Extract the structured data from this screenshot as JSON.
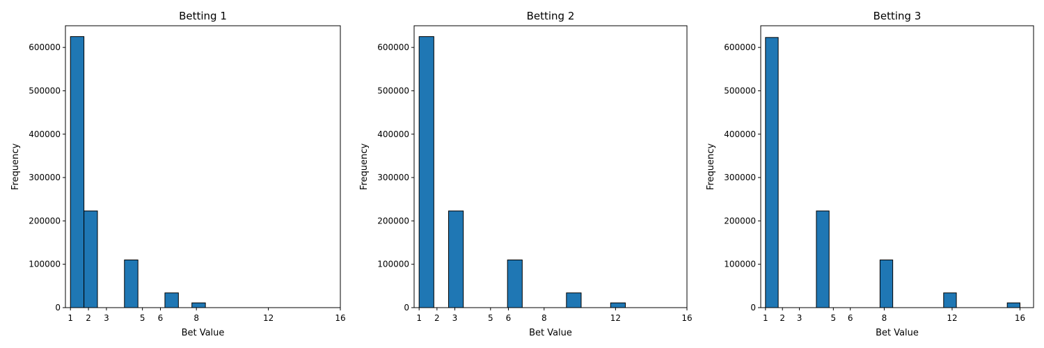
{
  "chart_data": [
    {
      "type": "bar",
      "title": "Betting 1",
      "xlabel": "Bet Value",
      "ylabel": "Frequency",
      "xlim": [
        0.72,
        16
      ],
      "ylim": [
        0,
        650000
      ],
      "xticks": [
        1,
        2,
        3,
        5,
        6,
        8,
        12,
        16
      ],
      "yticks": [
        0,
        100000,
        200000,
        300000,
        400000,
        500000,
        600000
      ],
      "bin_width": 0.75,
      "bars": [
        {
          "x0": 1.0,
          "value": 625000
        },
        {
          "x0": 1.75,
          "value": 223000
        },
        {
          "x0": 2.5,
          "value": 0
        },
        {
          "x0": 3.25,
          "value": 0
        },
        {
          "x0": 4.0,
          "value": 110000
        },
        {
          "x0": 4.75,
          "value": 0
        },
        {
          "x0": 5.5,
          "value": 0
        },
        {
          "x0": 6.25,
          "value": 34000
        },
        {
          "x0": 7.0,
          "value": 0
        },
        {
          "x0": 7.75,
          "value": 11000
        }
      ],
      "color": "#1f77b4",
      "edgecolor": "#000000",
      "grid": false
    },
    {
      "type": "bar",
      "title": "Betting 2",
      "xlabel": "Bet Value",
      "ylabel": "Frequency",
      "xlim": [
        0.72,
        16
      ],
      "ylim": [
        0,
        650000
      ],
      "xticks": [
        1,
        2,
        3,
        5,
        6,
        8,
        12,
        16
      ],
      "yticks": [
        0,
        100000,
        200000,
        300000,
        400000,
        500000,
        600000
      ],
      "bin_width": 0.825,
      "bars": [
        {
          "x0": 1.0,
          "value": 625000
        },
        {
          "x0": 1.825,
          "value": 0
        },
        {
          "x0": 2.65,
          "value": 223000
        },
        {
          "x0": 3.475,
          "value": 0
        },
        {
          "x0": 4.3,
          "value": 0
        },
        {
          "x0": 5.125,
          "value": 0
        },
        {
          "x0": 5.95,
          "value": 110000
        },
        {
          "x0": 6.775,
          "value": 0
        },
        {
          "x0": 7.6,
          "value": 0
        },
        {
          "x0": 8.425,
          "value": 0
        },
        {
          "x0": 9.25,
          "value": 34000
        },
        {
          "x0": 10.075,
          "value": 0
        },
        {
          "x0": 10.9,
          "value": 0
        },
        {
          "x0": 11.725,
          "value": 11000
        }
      ],
      "color": "#1f77b4",
      "edgecolor": "#000000",
      "grid": false
    },
    {
      "type": "bar",
      "title": "Betting 3",
      "xlabel": "Bet Value",
      "ylabel": "Frequency",
      "xlim": [
        0.72,
        16.8
      ],
      "ylim": [
        0,
        650000
      ],
      "xticks": [
        1,
        2,
        3,
        5,
        6,
        8,
        12,
        16
      ],
      "yticks": [
        0,
        100000,
        200000,
        300000,
        400000,
        500000,
        600000
      ],
      "bin_width": 0.75,
      "bars": [
        {
          "x0": 1.0,
          "value": 623000
        },
        {
          "x0": 1.75,
          "value": 0
        },
        {
          "x0": 2.5,
          "value": 0
        },
        {
          "x0": 3.25,
          "value": 0
        },
        {
          "x0": 4.0,
          "value": 223000
        },
        {
          "x0": 4.75,
          "value": 0
        },
        {
          "x0": 5.5,
          "value": 0
        },
        {
          "x0": 6.25,
          "value": 0
        },
        {
          "x0": 7.0,
          "value": 0
        },
        {
          "x0": 7.75,
          "value": 110000
        },
        {
          "x0": 8.5,
          "value": 0
        },
        {
          "x0": 9.25,
          "value": 0
        },
        {
          "x0": 10.0,
          "value": 0
        },
        {
          "x0": 10.75,
          "value": 0
        },
        {
          "x0": 11.5,
          "value": 34000
        },
        {
          "x0": 12.25,
          "value": 0
        },
        {
          "x0": 13.0,
          "value": 0
        },
        {
          "x0": 13.75,
          "value": 0
        },
        {
          "x0": 14.5,
          "value": 0
        },
        {
          "x0": 15.25,
          "value": 11000
        }
      ],
      "color": "#1f77b4",
      "edgecolor": "#000000",
      "grid": false
    }
  ]
}
